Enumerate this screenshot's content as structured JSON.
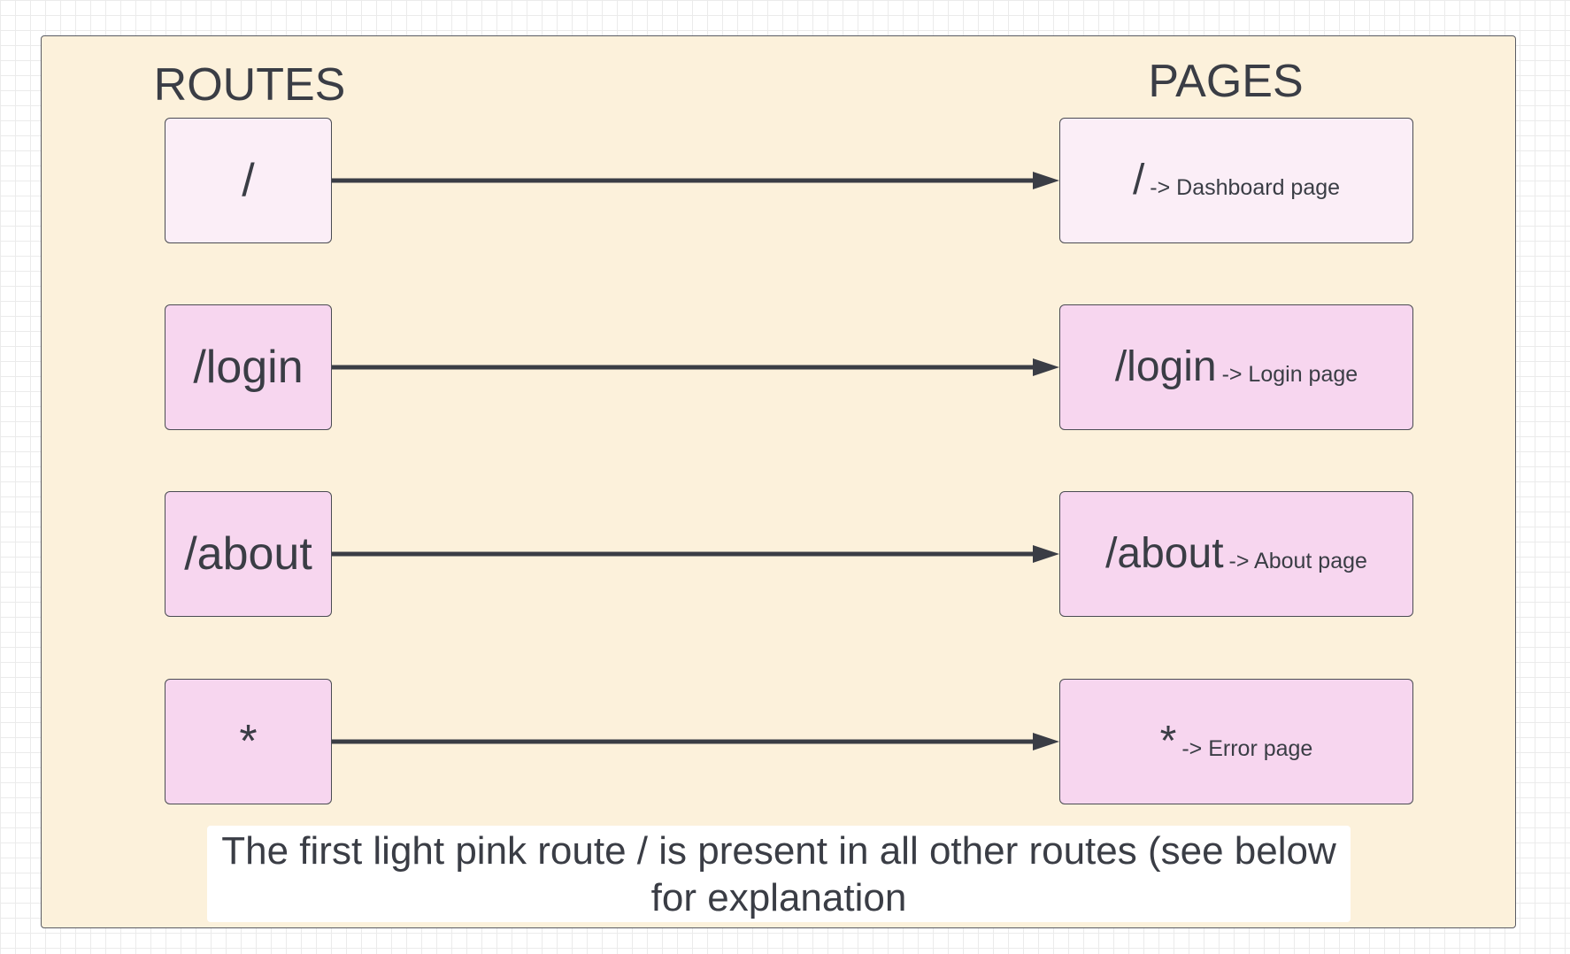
{
  "headers": {
    "routes": "ROUTES",
    "pages": "PAGES"
  },
  "rows": [
    {
      "route": "/",
      "page_path": "/",
      "page_desc": "-> Dashboard page",
      "color": "#fbeef7"
    },
    {
      "route": "/login",
      "page_path": "/login",
      "page_desc": "-> Login page",
      "color": "#f7d6ef"
    },
    {
      "route": "/about",
      "page_path": "/about",
      "page_desc": "-> About page",
      "color": "#f7d6ef"
    },
    {
      "route": "*",
      "page_path": "*",
      "page_desc": "-> Error page",
      "color": "#f7d6ef"
    }
  ],
  "note": {
    "line1": "The first light pink route / is present in all other routes (see below",
    "line2": "for explanation"
  },
  "colors": {
    "frame_background": "#fcf1db",
    "route_light": "#fbeef7",
    "route_pink": "#f7d6ef",
    "arrow": "#3a3d45",
    "text": "#3a3d45"
  }
}
